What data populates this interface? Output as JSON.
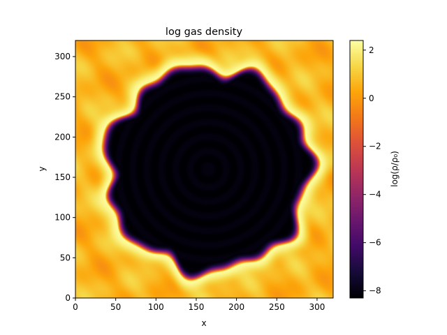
{
  "chart_data": {
    "type": "heatmap",
    "title": "log gas density",
    "xlabel": "x",
    "ylabel": "y",
    "xlim": [
      0,
      320
    ],
    "ylim": [
      0,
      320
    ],
    "xticks": [
      0,
      50,
      100,
      150,
      200,
      250,
      300
    ],
    "yticks": [
      0,
      50,
      100,
      150,
      200,
      250,
      300
    ],
    "colormap": "inferno",
    "colorbar": {
      "label": "log(ρ/ρ₀)",
      "range": [
        -8.3,
        2.4
      ],
      "ticks": [
        -8,
        -6,
        -4,
        -2,
        0,
        2
      ]
    },
    "field": {
      "center": [
        165,
        160
      ],
      "cavity_radius": 130,
      "shell_width": 12,
      "cavity_value": -8.2,
      "shell_peak_value": 2.3,
      "ambient_value": 0.6
    }
  }
}
